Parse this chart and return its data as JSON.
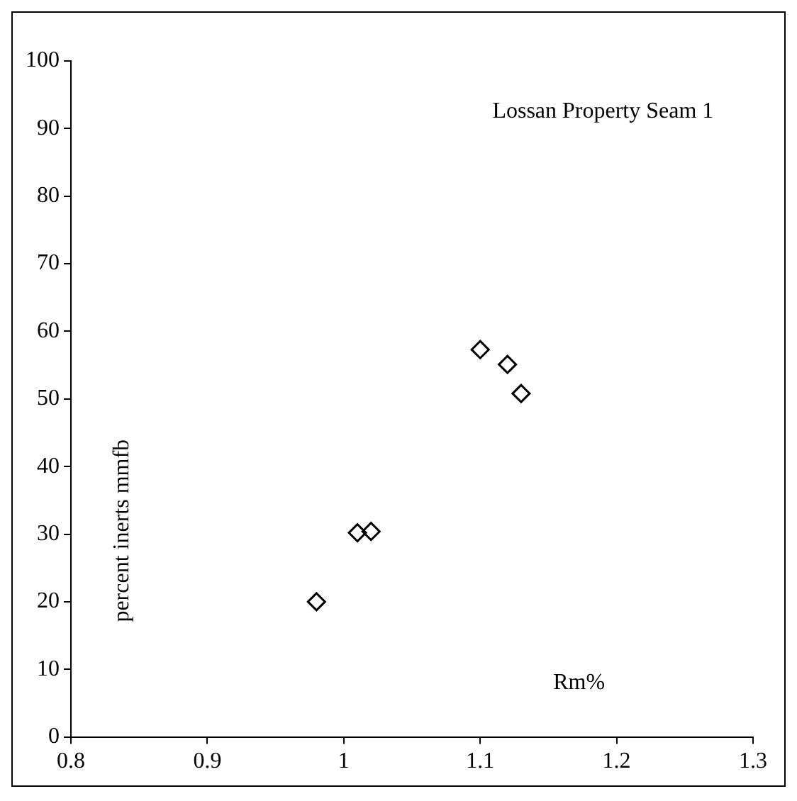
{
  "chart_data": {
    "type": "scatter",
    "title": "Lossan Property Seam 1",
    "xlabel": "Rm%",
    "ylabel": "percent inerts mmfb",
    "series": [
      {
        "color": "#000000",
        "x": [
          0.98,
          1.01,
          1.02,
          1.1,
          1.12,
          1.13
        ],
        "values": [
          20,
          30.2,
          30.4,
          57.3,
          55.1,
          50.8
        ]
      }
    ],
    "xlim": [
      0.8,
      1.3
    ],
    "xticks": [
      0.8,
      0.9,
      1,
      1.1,
      1.2,
      1.3
    ],
    "ylim": [
      0,
      100
    ],
    "yticks": [
      0,
      10,
      20,
      30,
      40,
      50,
      60,
      70,
      80,
      90,
      100
    ],
    "marker": "diamond"
  }
}
